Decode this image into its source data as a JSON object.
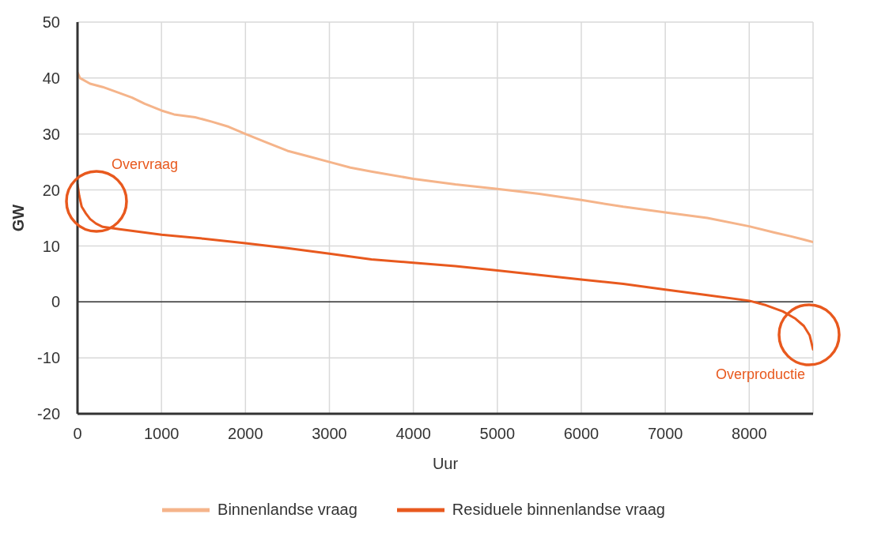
{
  "chart_data": {
    "type": "line",
    "xlabel": "Uur",
    "ylabel": "GW",
    "xlim": [
      0,
      8760
    ],
    "xticks": [
      0,
      1000,
      2000,
      3000,
      4000,
      5000,
      6000,
      7000,
      8000
    ],
    "ylim": [
      -20,
      50
    ],
    "yticks": [
      -20,
      -10,
      0,
      10,
      20,
      30,
      40,
      50
    ],
    "grid": true,
    "legend": "bottom",
    "marker": "none",
    "line_style": "solid",
    "series": [
      {
        "name": "Binnenlandse vraag",
        "color": "#f5b48a",
        "x": [
          0,
          30,
          150,
          300,
          450,
          650,
          800,
          1000,
          1150,
          1400,
          1600,
          1800,
          2000,
          2250,
          2500,
          2750,
          3000,
          3250,
          3500,
          4000,
          4500,
          5000,
          5500,
          6000,
          6500,
          7000,
          7500,
          8000,
          8300,
          8500,
          8760
        ],
        "values": [
          41,
          40,
          39,
          38.4,
          37.6,
          36.5,
          35.4,
          34.2,
          33.5,
          33,
          32.2,
          31.3,
          30,
          28.5,
          27,
          26,
          25,
          24,
          23.3,
          22,
          21,
          20.2,
          19.3,
          18.2,
          17,
          16,
          15,
          13.5,
          12.4,
          11.7,
          10.7
        ]
      },
      {
        "name": "Residuele binnenlandse vraag",
        "color": "#e8591e",
        "x": [
          0,
          20,
          50,
          100,
          150,
          220,
          300,
          500,
          1000,
          1500,
          2000,
          2500,
          3000,
          3500,
          4000,
          4500,
          5000,
          5500,
          6000,
          6500,
          7000,
          7500,
          8000,
          8200,
          8400,
          8550,
          8650,
          8720,
          8760
        ],
        "values": [
          21,
          19,
          17,
          15.8,
          14.8,
          14,
          13.4,
          13,
          12,
          11.3,
          10.5,
          9.6,
          8.6,
          7.6,
          7,
          6.4,
          5.6,
          4.8,
          4,
          3.2,
          2.2,
          1.2,
          0.2,
          -0.6,
          -1.7,
          -3,
          -4.3,
          -6,
          -8.5
        ]
      }
    ],
    "ref_lines": [
      {
        "axis": "y",
        "value": 0,
        "color": "#333333"
      }
    ],
    "annotations": [
      "Overvraag",
      "Overproductie"
    ]
  }
}
